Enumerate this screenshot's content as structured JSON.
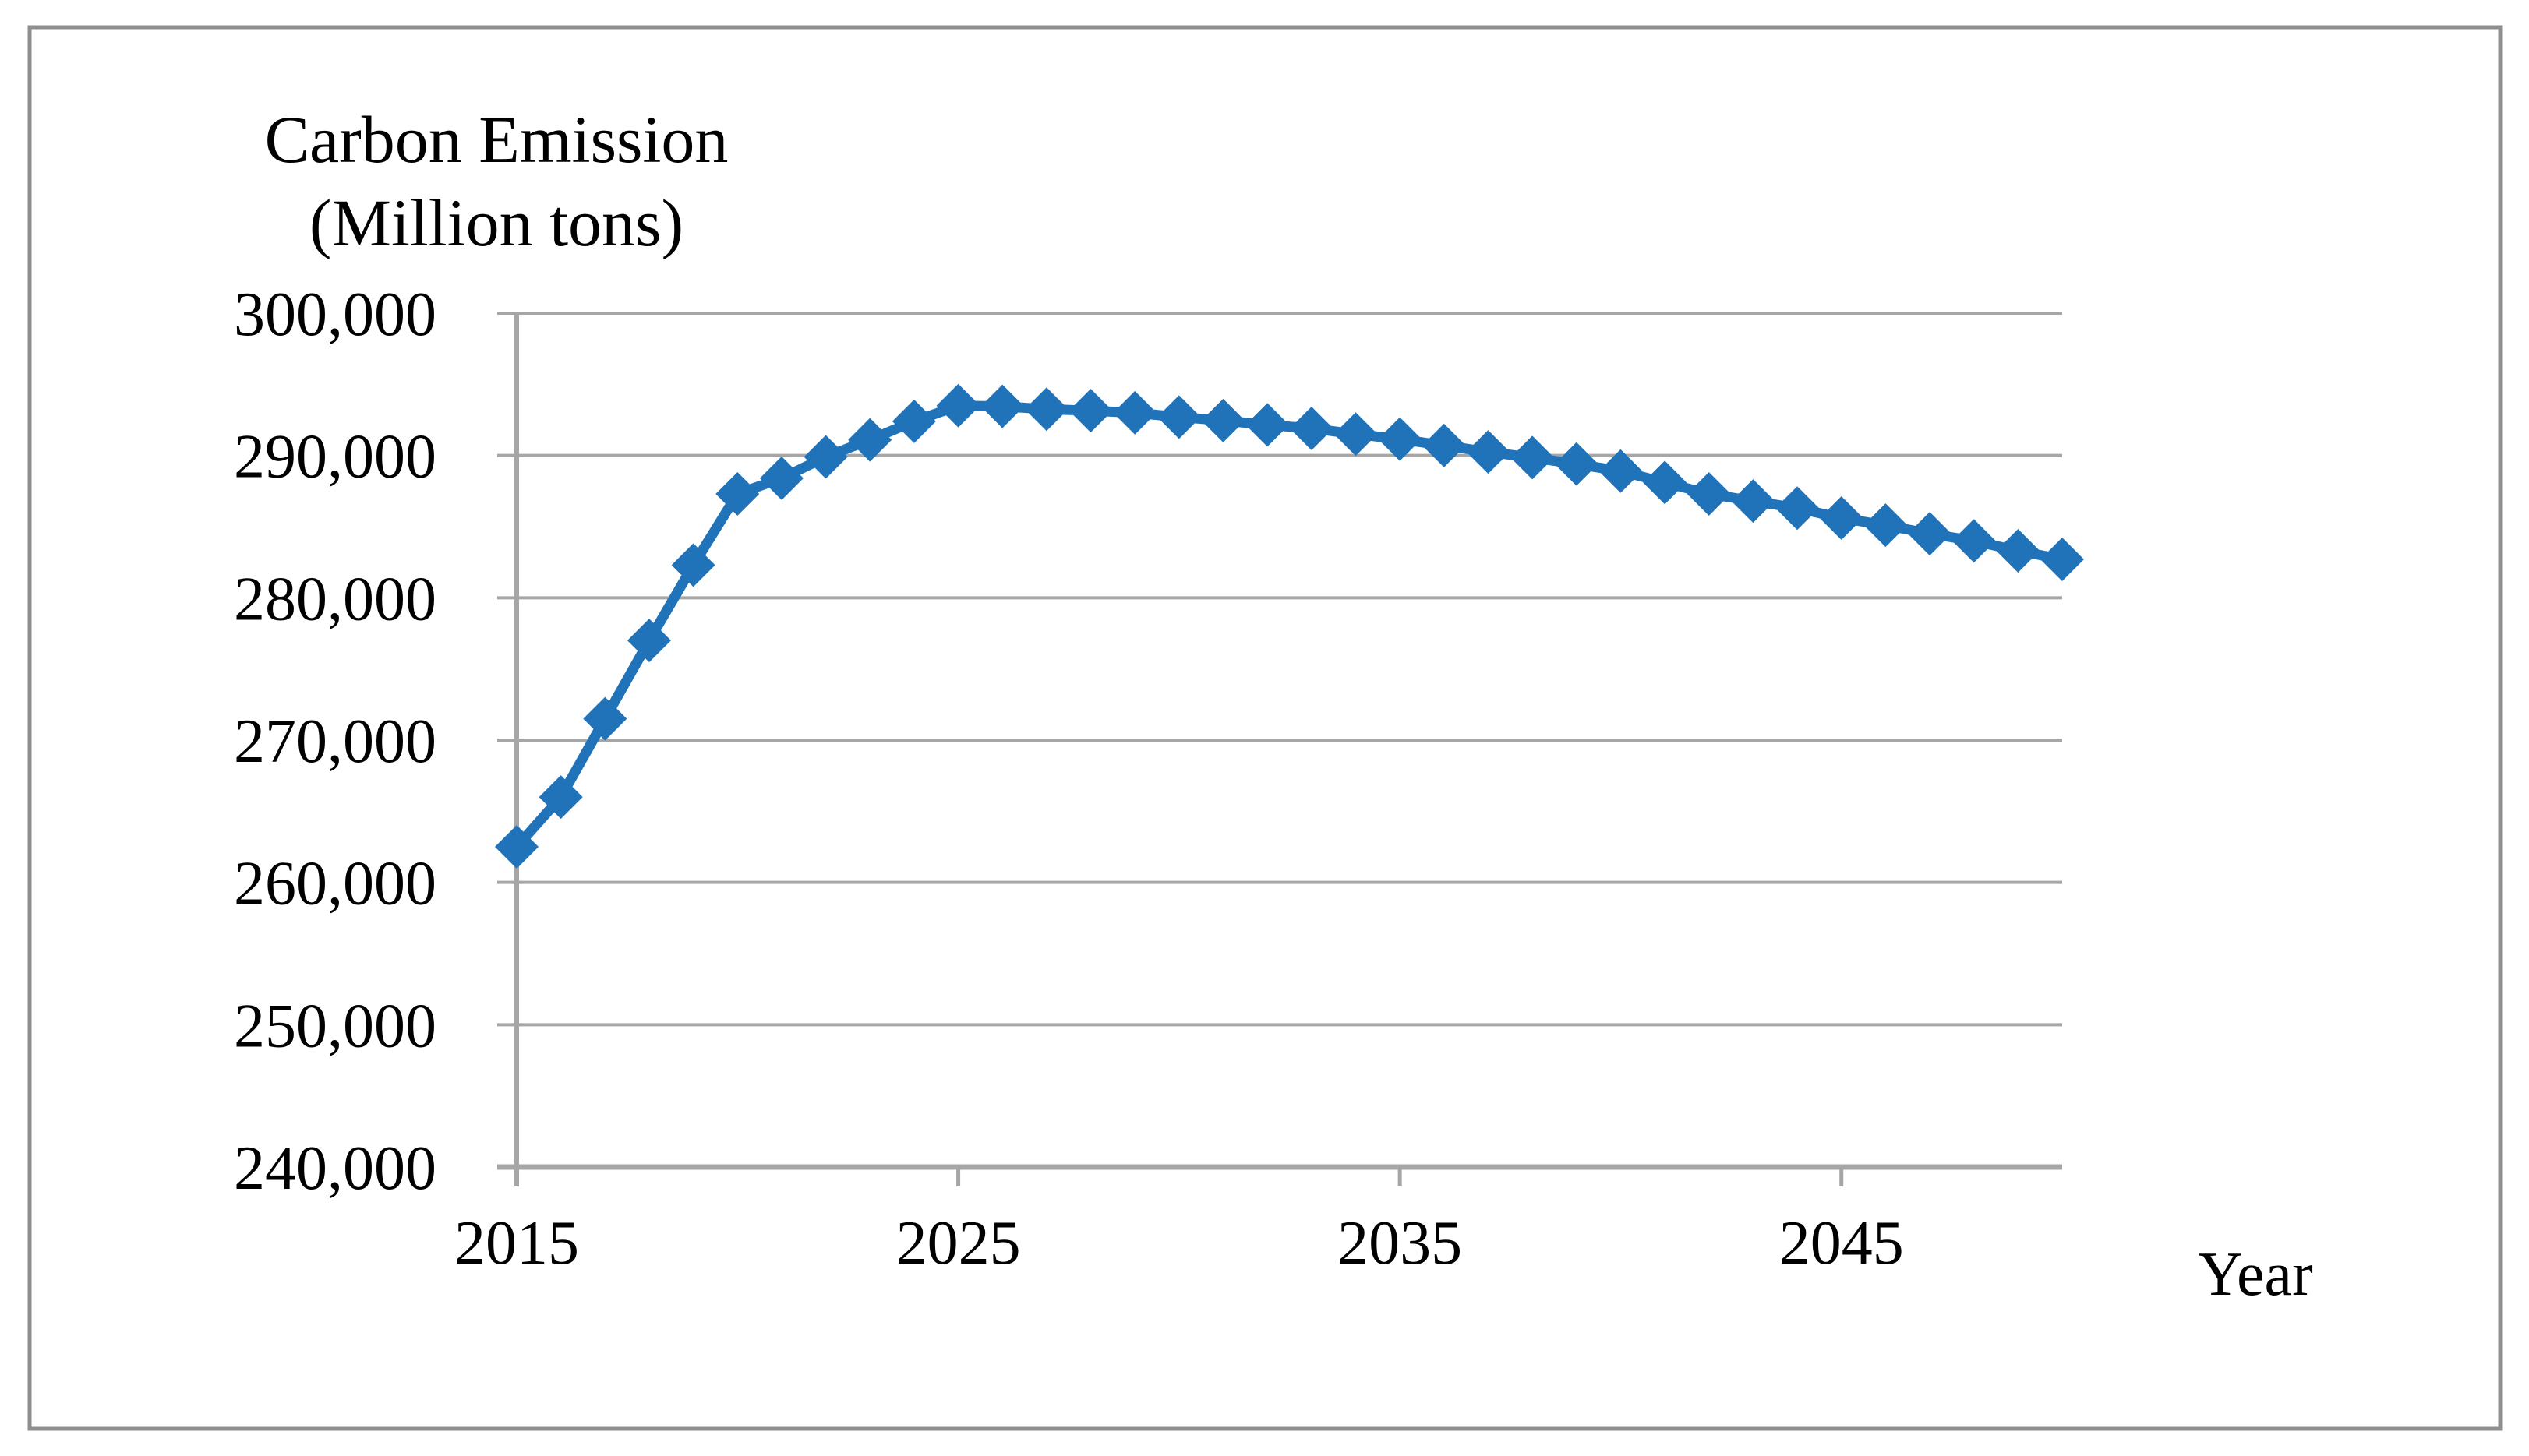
{
  "figure": {
    "title_line1": "Carbon Emission",
    "title_line2": "(Million tons)",
    "xlabel": "Year"
  },
  "chart_data": {
    "type": "line",
    "title": "Carbon Emission (Million tons)",
    "xlabel": "Year",
    "ylabel": "Carbon Emission (Million tons)",
    "series_name": "Carbon Emission",
    "x": [
      2015,
      2016,
      2017,
      2018,
      2019,
      2020,
      2021,
      2022,
      2023,
      2024,
      2025,
      2026,
      2027,
      2028,
      2029,
      2030,
      2031,
      2032,
      2033,
      2034,
      2035,
      2036,
      2037,
      2038,
      2039,
      2040,
      2041,
      2042,
      2043,
      2044,
      2045,
      2046,
      2047,
      2048,
      2049,
      2050
    ],
    "values": [
      262500,
      266000,
      271500,
      277000,
      282300,
      287300,
      288400,
      289900,
      291100,
      292400,
      293500,
      293450,
      293250,
      293150,
      293000,
      292700,
      292450,
      292150,
      291900,
      291500,
      291150,
      290700,
      290250,
      289850,
      289400,
      288900,
      288100,
      287300,
      286800,
      286300,
      285600,
      285100,
      284500,
      284000,
      283300,
      282700
    ],
    "ylim": [
      240000,
      300000
    ],
    "ytick_step": 10000,
    "ytick_labels": [
      "240,000",
      "250,000",
      "260,000",
      "270,000",
      "280,000",
      "290,000",
      "300,000"
    ],
    "xticks": [
      2015,
      2025,
      2035,
      2045
    ],
    "grid": true,
    "legend_position": "none",
    "marker": "diamond",
    "colors": {
      "line": "#2073B9",
      "grid": "#A6A6A6",
      "axis": "#A6A6A6",
      "border": "#8F8F8F",
      "text": "#000000"
    }
  }
}
